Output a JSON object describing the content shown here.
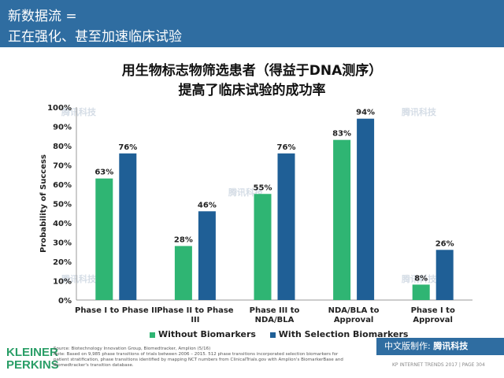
{
  "header": {
    "line1": "新数据流 =",
    "line2": "正在强化、甚至加速临床试验"
  },
  "title_line1": "用生物标志物筛选患者（得益于DNA测序）",
  "title_line2": "提高了临床试验的成功率",
  "chart_data": {
    "type": "bar",
    "categories": [
      "Phase I to Phase II",
      "Phase II to Phase III",
      "Phase III to NDA/BLA",
      "NDA/BLA to Approval",
      "Phase I to Approval"
    ],
    "category_lines": [
      [
        "Phase I to Phase II"
      ],
      [
        "Phase II to Phase",
        "III"
      ],
      [
        "Phase III to",
        "NDA/BLA"
      ],
      [
        "NDA/BLA to",
        "Approval"
      ],
      [
        "Phase I to",
        "Approval"
      ]
    ],
    "series": [
      {
        "name": "Without Biomarkers",
        "values": [
          63,
          28,
          55,
          83,
          8
        ],
        "color": "#2fb573"
      },
      {
        "name": "With Selection Biomarkers",
        "values": [
          76,
          46,
          76,
          94,
          26
        ],
        "color": "#1f5f96"
      }
    ],
    "ylabel": "Probability of Success",
    "ylim": [
      0,
      100
    ],
    "yticks": [
      "0%",
      "10%",
      "20%",
      "30%",
      "40%",
      "50%",
      "60%",
      "70%",
      "80%",
      "90%",
      "100%"
    ],
    "value_suffix": "%",
    "legend_position": "bottom"
  },
  "footer": {
    "logo_line1": "KLEINER",
    "logo_line2": "PERKINS",
    "source": "Source: Biotechnology Innovation Group, Biomedtracker, Amplion (5/16)",
    "note": "Note: Based on 9,985 phase transitions of trials between 2006 – 2015. 512 phase transitions incorporated selection biomarkers for patient stratification, phase transitions identified by mapping NCT numbers from ClinicalTrials.gov with Amplion's BiomarkerBase and Biomedtracker's transition database.",
    "badge_text": "中文版制作:",
    "badge_logo": "腾讯科技",
    "page_info": "KP INTERNET TRENDS 2017  |  PAGE 304"
  },
  "watermark": "腾讯科技"
}
